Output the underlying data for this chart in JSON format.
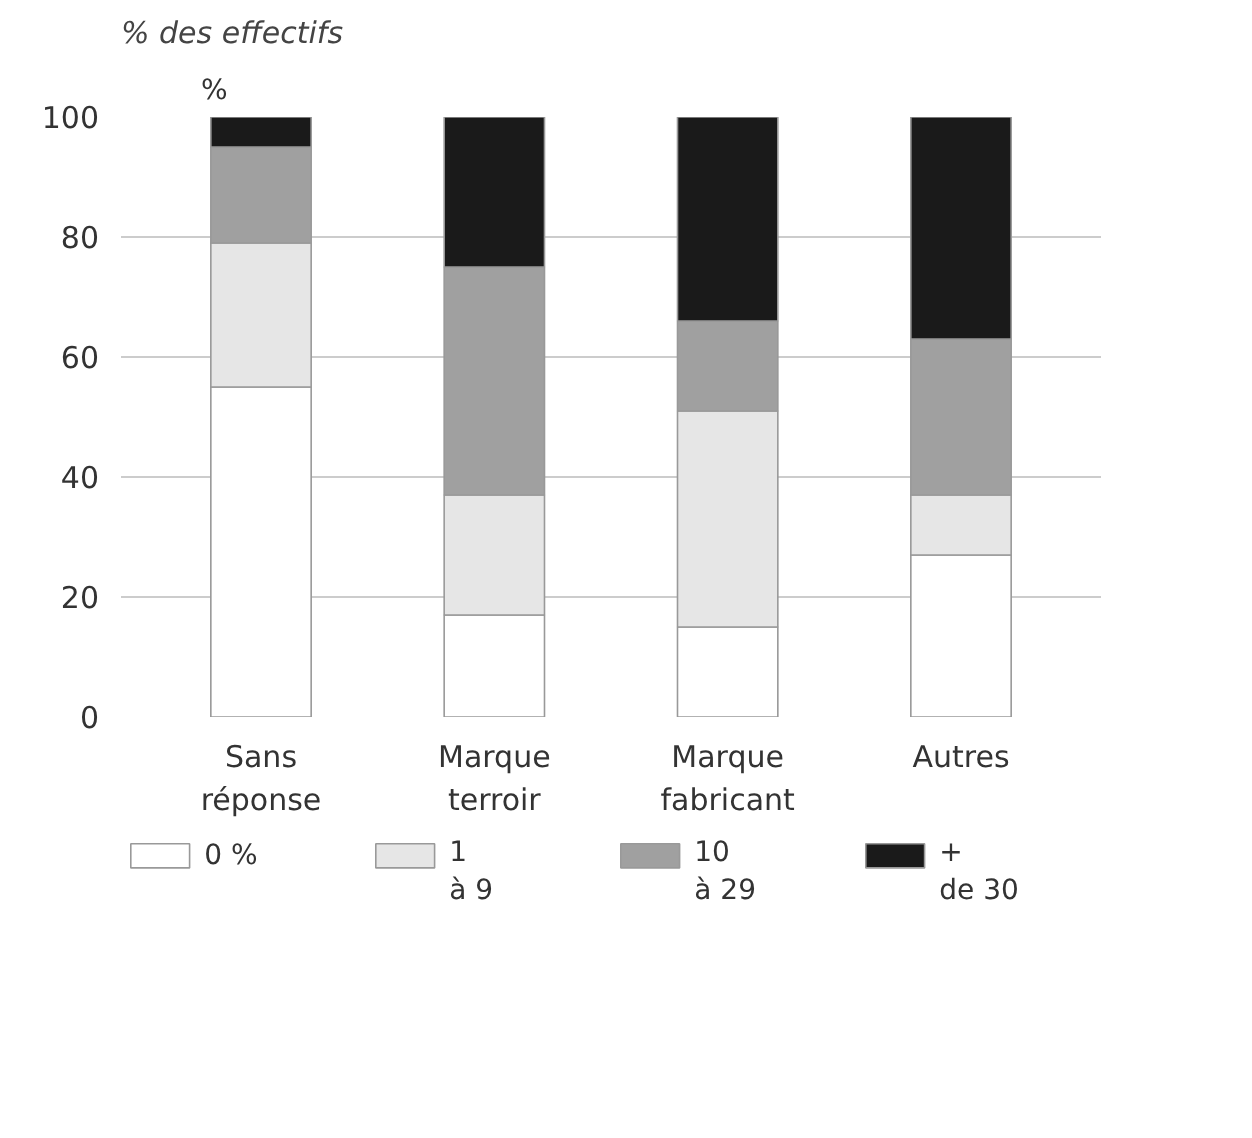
{
  "chart_data": {
    "type": "bar",
    "title": "% des effectifs",
    "ylabel": "%",
    "categories": [
      "Sans\nréponse",
      "Marque\nterroir",
      "Marque\nfabricant",
      "Autres"
    ],
    "stacked": true,
    "series": [
      {
        "name": "0 %",
        "color": "#ffffff",
        "values": [
          55,
          17,
          15,
          27
        ]
      },
      {
        "name": "1\nà 9",
        "color": "#e6e6e6",
        "values": [
          24,
          20,
          36,
          10
        ]
      },
      {
        "name": "10\nà 29",
        "color": "#a0a0a0",
        "values": [
          16,
          38,
          15,
          26
        ]
      },
      {
        "name": "+\nde 30",
        "color": "#1a1a1a",
        "values": [
          5,
          25,
          34,
          37
        ]
      }
    ],
    "ylim": [
      0,
      100
    ],
    "yticks": [
      0,
      20,
      40,
      60,
      80,
      100
    ],
    "grid": "y",
    "legend": "bottom"
  }
}
